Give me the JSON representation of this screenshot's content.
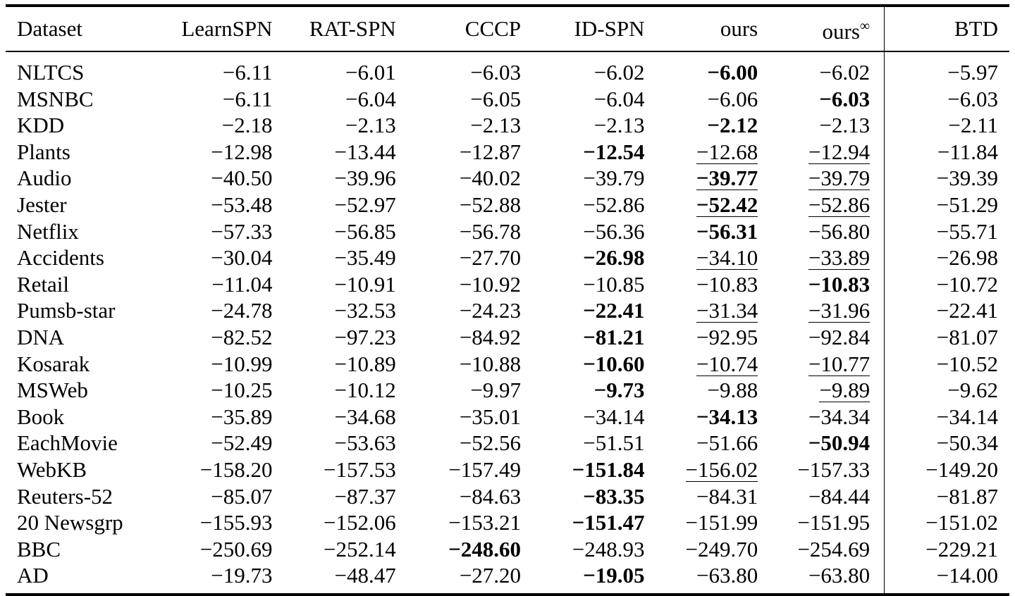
{
  "table": {
    "columns": [
      "Dataset",
      "LearnSPN",
      "RAT-SPN",
      "CCCP",
      "ID-SPN",
      "ours",
      "ours",
      "BTD"
    ],
    "column_superscripts": {
      "6": "∞"
    },
    "rows": [
      {
        "dataset": "NLTCS",
        "values": [
          "−6.11",
          "−6.01",
          "−6.03",
          "−6.02",
          "−6.00",
          "−6.02",
          "−5.97"
        ],
        "bold": [
          4
        ],
        "underline": []
      },
      {
        "dataset": "MSNBC",
        "values": [
          "−6.11",
          "−6.04",
          "−6.05",
          "−6.04",
          "−6.06",
          "−6.03",
          "−6.03"
        ],
        "bold": [
          5
        ],
        "underline": []
      },
      {
        "dataset": "KDD",
        "values": [
          "−2.18",
          "−2.13",
          "−2.13",
          "−2.13",
          "−2.12",
          "−2.13",
          "−2.11"
        ],
        "bold": [
          4
        ],
        "underline": []
      },
      {
        "dataset": "Plants",
        "values": [
          "−12.98",
          "−13.44",
          "−12.87",
          "−12.54",
          "−12.68",
          "−12.94",
          "−11.84"
        ],
        "bold": [
          3
        ],
        "underline": [
          4,
          5
        ]
      },
      {
        "dataset": "Audio",
        "values": [
          "−40.50",
          "−39.96",
          "−40.02",
          "−39.79",
          "−39.77",
          "−39.79",
          "−39.39"
        ],
        "bold": [
          4
        ],
        "underline": [
          4,
          5
        ]
      },
      {
        "dataset": "Jester",
        "values": [
          "−53.48",
          "−52.97",
          "−52.88",
          "−52.86",
          "−52.42",
          "−52.86",
          "−51.29"
        ],
        "bold": [
          4
        ],
        "underline": [
          4,
          5
        ]
      },
      {
        "dataset": "Netflix",
        "values": [
          "−57.33",
          "−56.85",
          "−56.78",
          "−56.36",
          "−56.31",
          "−56.80",
          "−55.71"
        ],
        "bold": [
          4
        ],
        "underline": []
      },
      {
        "dataset": "Accidents",
        "values": [
          "−30.04",
          "−35.49",
          "−27.70",
          "−26.98",
          "−34.10",
          "−33.89",
          "−26.98"
        ],
        "bold": [
          3
        ],
        "underline": [
          4,
          5
        ]
      },
      {
        "dataset": "Retail",
        "values": [
          "−11.04",
          "−10.91",
          "−10.92",
          "−10.85",
          "−10.83",
          "−10.83",
          "−10.72"
        ],
        "bold": [
          5
        ],
        "underline": []
      },
      {
        "dataset": "Pumsb-star",
        "values": [
          "−24.78",
          "−32.53",
          "−24.23",
          "−22.41",
          "−31.34",
          "−31.96",
          "−22.41"
        ],
        "bold": [
          3
        ],
        "underline": [
          4,
          5
        ]
      },
      {
        "dataset": "DNA",
        "values": [
          "−82.52",
          "−97.23",
          "−84.92",
          "−81.21",
          "−92.95",
          "−92.84",
          "−81.07"
        ],
        "bold": [
          3
        ],
        "underline": []
      },
      {
        "dataset": "Kosarak",
        "values": [
          "−10.99",
          "−10.89",
          "−10.88",
          "−10.60",
          "−10.74",
          "−10.77",
          "−10.52"
        ],
        "bold": [
          3
        ],
        "underline": [
          4,
          5
        ]
      },
      {
        "dataset": "MSWeb",
        "values": [
          "−10.25",
          "−10.12",
          "−9.97",
          "−9.73",
          "−9.88",
          "−9.89",
          "−9.62"
        ],
        "bold": [
          3
        ],
        "underline": [
          5
        ]
      },
      {
        "dataset": "Book",
        "values": [
          "−35.89",
          "−34.68",
          "−35.01",
          "−34.14",
          "−34.13",
          "−34.34",
          "−34.14"
        ],
        "bold": [
          4
        ],
        "underline": []
      },
      {
        "dataset": "EachMovie",
        "values": [
          "−52.49",
          "−53.63",
          "−52.56",
          "−51.51",
          "−51.66",
          "−50.94",
          "−50.34"
        ],
        "bold": [
          5
        ],
        "underline": []
      },
      {
        "dataset": "WebKB",
        "values": [
          "−158.20",
          "−157.53",
          "−157.49",
          "−151.84",
          "−156.02",
          "−157.33",
          "−149.20"
        ],
        "bold": [
          3
        ],
        "underline": [
          4
        ]
      },
      {
        "dataset": "Reuters-52",
        "values": [
          "−85.07",
          "−87.37",
          "−84.63",
          "−83.35",
          "−84.31",
          "−84.44",
          "−81.87"
        ],
        "bold": [
          3
        ],
        "underline": []
      },
      {
        "dataset": "20 Newsgrp",
        "values": [
          "−155.93",
          "−152.06",
          "−153.21",
          "−151.47",
          "−151.99",
          "−151.95",
          "−151.02"
        ],
        "bold": [
          3
        ],
        "underline": []
      },
      {
        "dataset": "BBC",
        "values": [
          "−250.69",
          "−252.14",
          "−248.60",
          "−248.93",
          "−249.70",
          "−254.69",
          "−229.21"
        ],
        "bold": [
          2
        ],
        "underline": []
      },
      {
        "dataset": "AD",
        "values": [
          "−19.73",
          "−48.47",
          "−27.20",
          "−19.05",
          "−63.80",
          "−63.80",
          "−14.00"
        ],
        "bold": [
          3
        ],
        "underline": []
      }
    ]
  }
}
